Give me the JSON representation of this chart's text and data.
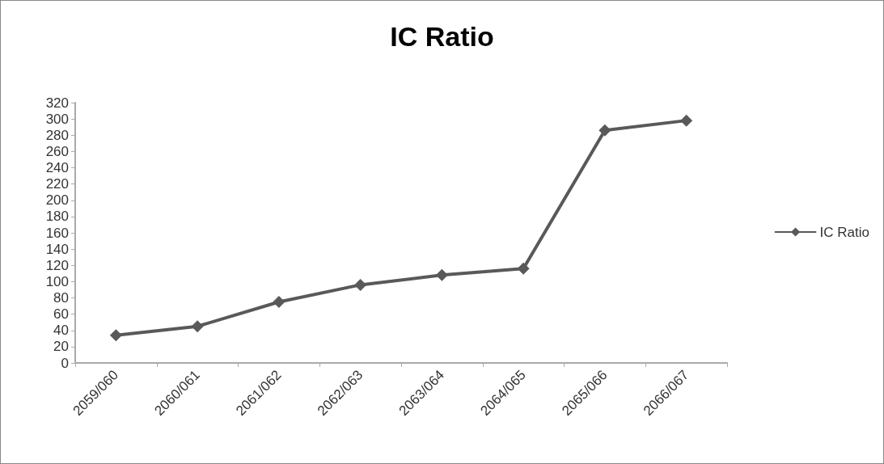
{
  "chart_data": {
    "type": "line",
    "title": "IC Ratio",
    "categories": [
      "2059/060",
      "2060/061",
      "2061/062",
      "2062/063",
      "2063/064",
      "2064/065",
      "2065/066",
      "2066/067"
    ],
    "series": [
      {
        "name": "IC Ratio",
        "color": "#595959",
        "values": [
          34,
          45,
          75,
          96,
          108,
          116,
          286,
          298
        ]
      }
    ],
    "ylim": [
      0,
      320
    ],
    "yticks": [
      0,
      20,
      40,
      60,
      80,
      100,
      120,
      140,
      160,
      180,
      200,
      220,
      240,
      260,
      280,
      300,
      320
    ],
    "grid": false,
    "legend": "right",
    "marker": "diamond",
    "line_style": "solid"
  }
}
